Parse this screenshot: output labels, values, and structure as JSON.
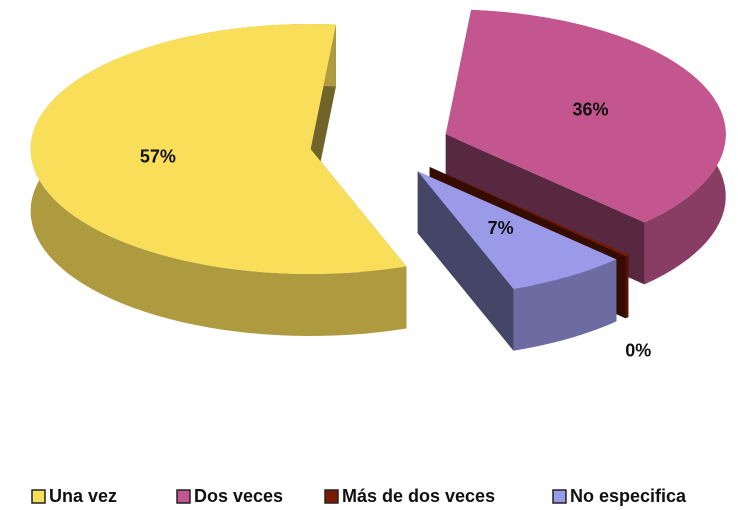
{
  "chart_data": {
    "type": "pie3d",
    "categories": [
      "Una vez",
      "Dos veces",
      "Más de dos veces",
      "No especifica"
    ],
    "values": [
      57,
      36,
      0,
      7
    ],
    "value_labels": [
      "57%",
      "36%",
      "0%",
      "7%"
    ],
    "colors": [
      "#f9de5a",
      "#c4568f",
      "#7a1a00",
      "#9a9ae8"
    ],
    "legend": "bottom"
  }
}
